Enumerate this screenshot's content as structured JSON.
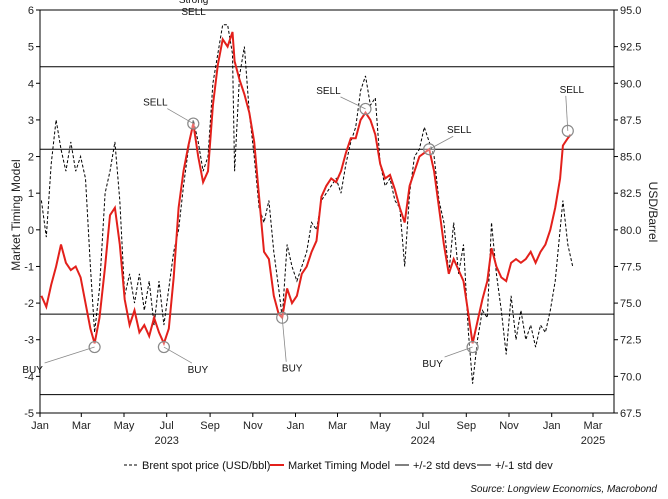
{
  "chart_data": {
    "type": "line",
    "left_axis": {
      "label": "Market Timing Model",
      "range": [
        -5,
        6
      ],
      "ticks": [
        "-5",
        "-4",
        "-3",
        "-2",
        "-1",
        "0",
        "1",
        "2",
        "3",
        "4",
        "5",
        "6"
      ]
    },
    "right_axis": {
      "label": "USD/Barrel",
      "range": [
        67.5,
        95.0
      ],
      "ticks": [
        "67.5",
        "70.0",
        "72.5",
        "75.0",
        "77.5",
        "80.0",
        "82.5",
        "85.0",
        "87.5",
        "90.0",
        "92.5",
        "95.0"
      ]
    },
    "x_axis": {
      "range": [
        "2023-01-01",
        "2025-03-31"
      ],
      "ticks": [
        {
          "label": "Jan",
          "date": "2023-01-01"
        },
        {
          "label": "Mar",
          "date": "2023-03-01"
        },
        {
          "label": "May",
          "date": "2023-05-01"
        },
        {
          "label": "Jul",
          "date": "2023-07-01"
        },
        {
          "label": "Sep",
          "date": "2023-09-01"
        },
        {
          "label": "Nov",
          "date": "2023-11-01"
        },
        {
          "label": "Jan",
          "date": "2024-01-01"
        },
        {
          "label": "Mar",
          "date": "2024-03-01"
        },
        {
          "label": "May",
          "date": "2024-05-01"
        },
        {
          "label": "Jul",
          "date": "2024-07-01"
        },
        {
          "label": "Sep",
          "date": "2024-09-01"
        },
        {
          "label": "Nov",
          "date": "2024-11-01"
        },
        {
          "label": "Jan",
          "date": "2025-01-01"
        },
        {
          "label": "Mar",
          "date": "2025-03-01"
        }
      ],
      "year_labels": [
        {
          "label": "2023",
          "date": "2023-07-01"
        },
        {
          "label": "2024",
          "date": "2024-07-01"
        },
        {
          "label": "2025",
          "date": "2025-03-01"
        }
      ]
    },
    "reference_lines": [
      {
        "series": "+/-2 std devs",
        "y": 4.45
      },
      {
        "series": "+/-2 std devs",
        "y": -4.5
      },
      {
        "series": "+/-1 std dev",
        "y": 2.2
      },
      {
        "series": "+/-1 std dev",
        "y": -2.3
      }
    ],
    "series": [
      {
        "name": "Brent spot price (USD/bbl)",
        "axis": "right",
        "color": "#000000",
        "style": "dashed",
        "points": [
          [
            "2023-01-03",
            82.0
          ],
          [
            "2023-01-10",
            79.5
          ],
          [
            "2023-01-17",
            84.5
          ],
          [
            "2023-01-24",
            87.5
          ],
          [
            "2023-01-31",
            85.5
          ],
          [
            "2023-02-07",
            84.0
          ],
          [
            "2023-02-14",
            86.0
          ],
          [
            "2023-02-21",
            84.0
          ],
          [
            "2023-02-28",
            85.0
          ],
          [
            "2023-03-07",
            83.5
          ],
          [
            "2023-03-14",
            77.5
          ],
          [
            "2023-03-20",
            73.0
          ],
          [
            "2023-03-27",
            76.0
          ],
          [
            "2023-04-04",
            82.5
          ],
          [
            "2023-04-11",
            84.0
          ],
          [
            "2023-04-18",
            86.0
          ],
          [
            "2023-04-25",
            82.0
          ],
          [
            "2023-05-02",
            75.5
          ],
          [
            "2023-05-09",
            77.0
          ],
          [
            "2023-05-16",
            75.0
          ],
          [
            "2023-05-23",
            77.0
          ],
          [
            "2023-05-30",
            74.5
          ],
          [
            "2023-06-06",
            76.5
          ],
          [
            "2023-06-13",
            73.5
          ],
          [
            "2023-06-20",
            76.5
          ],
          [
            "2023-06-27",
            73.5
          ],
          [
            "2023-07-04",
            76.0
          ],
          [
            "2023-07-11",
            78.5
          ],
          [
            "2023-07-18",
            80.0
          ],
          [
            "2023-07-25",
            83.0
          ],
          [
            "2023-08-01",
            85.5
          ],
          [
            "2023-08-08",
            87.5
          ],
          [
            "2023-08-15",
            86.0
          ],
          [
            "2023-08-22",
            84.0
          ],
          [
            "2023-08-29",
            85.0
          ],
          [
            "2023-09-05",
            90.0
          ],
          [
            "2023-09-12",
            92.0
          ],
          [
            "2023-09-19",
            94.0
          ],
          [
            "2023-09-26",
            94.0
          ],
          [
            "2023-10-03",
            92.0
          ],
          [
            "2023-10-06",
            84.0
          ],
          [
            "2023-10-13",
            90.5
          ],
          [
            "2023-10-20",
            92.5
          ],
          [
            "2023-10-27",
            88.0
          ],
          [
            "2023-11-03",
            85.0
          ],
          [
            "2023-11-10",
            81.5
          ],
          [
            "2023-11-17",
            80.5
          ],
          [
            "2023-11-24",
            82.0
          ],
          [
            "2023-12-01",
            78.5
          ],
          [
            "2023-12-08",
            76.0
          ],
          [
            "2023-12-13",
            74.0
          ],
          [
            "2023-12-20",
            79.0
          ],
          [
            "2023-12-27",
            77.5
          ],
          [
            "2024-01-03",
            76.5
          ],
          [
            "2024-01-10",
            77.5
          ],
          [
            "2024-01-17",
            78.5
          ],
          [
            "2024-01-24",
            80.5
          ],
          [
            "2024-01-31",
            80.0
          ],
          [
            "2024-02-07",
            82.0
          ],
          [
            "2024-02-14",
            82.5
          ],
          [
            "2024-02-21",
            83.0
          ],
          [
            "2024-02-28",
            83.5
          ],
          [
            "2024-03-06",
            82.5
          ],
          [
            "2024-03-13",
            84.5
          ],
          [
            "2024-03-20",
            86.0
          ],
          [
            "2024-03-27",
            87.0
          ],
          [
            "2024-04-03",
            89.5
          ],
          [
            "2024-04-10",
            90.5
          ],
          [
            "2024-04-17",
            88.5
          ],
          [
            "2024-04-24",
            89.0
          ],
          [
            "2024-05-01",
            84.5
          ],
          [
            "2024-05-08",
            83.0
          ],
          [
            "2024-05-15",
            83.5
          ],
          [
            "2024-05-22",
            82.0
          ],
          [
            "2024-05-29",
            81.5
          ],
          [
            "2024-06-05",
            77.5
          ],
          [
            "2024-06-12",
            82.5
          ],
          [
            "2024-06-19",
            85.0
          ],
          [
            "2024-06-26",
            85.5
          ],
          [
            "2024-07-03",
            87.0
          ],
          [
            "2024-07-10",
            86.0
          ],
          [
            "2024-07-17",
            85.0
          ],
          [
            "2024-07-24",
            82.0
          ],
          [
            "2024-07-31",
            80.5
          ],
          [
            "2024-08-07",
            77.0
          ],
          [
            "2024-08-14",
            80.5
          ],
          [
            "2024-08-21",
            77.0
          ],
          [
            "2024-08-28",
            79.0
          ],
          [
            "2024-09-04",
            73.0
          ],
          [
            "2024-09-10",
            69.5
          ],
          [
            "2024-09-17",
            72.5
          ],
          [
            "2024-09-24",
            74.5
          ],
          [
            "2024-10-01",
            74.0
          ],
          [
            "2024-10-07",
            80.5
          ],
          [
            "2024-10-14",
            77.0
          ],
          [
            "2024-10-21",
            74.5
          ],
          [
            "2024-10-28",
            71.5
          ],
          [
            "2024-11-04",
            75.5
          ],
          [
            "2024-11-11",
            72.5
          ],
          [
            "2024-11-18",
            74.5
          ],
          [
            "2024-11-25",
            72.5
          ],
          [
            "2024-12-02",
            73.5
          ],
          [
            "2024-12-09",
            72.0
          ],
          [
            "2024-12-16",
            73.5
          ],
          [
            "2024-12-23",
            73.0
          ],
          [
            "2024-12-30",
            74.5
          ],
          [
            "2025-01-06",
            76.5
          ],
          [
            "2025-01-13",
            80.0
          ],
          [
            "2025-01-17",
            82.0
          ],
          [
            "2025-01-24",
            79.0
          ],
          [
            "2025-01-31",
            77.5
          ]
        ]
      },
      {
        "name": "Market Timing Model",
        "axis": "left",
        "color": "#e3201b",
        "style": "solid",
        "points": [
          [
            "2023-01-03",
            -1.8
          ],
          [
            "2023-01-10",
            -2.1
          ],
          [
            "2023-01-17",
            -1.5
          ],
          [
            "2023-01-24",
            -1.0
          ],
          [
            "2023-01-31",
            -0.4
          ],
          [
            "2023-02-07",
            -0.9
          ],
          [
            "2023-02-14",
            -1.1
          ],
          [
            "2023-02-21",
            -1.0
          ],
          [
            "2023-02-28",
            -1.3
          ],
          [
            "2023-03-07",
            -2.0
          ],
          [
            "2023-03-14",
            -2.7
          ],
          [
            "2023-03-20",
            -3.1
          ],
          [
            "2023-03-27",
            -2.4
          ],
          [
            "2023-04-04",
            -1.0
          ],
          [
            "2023-04-11",
            0.4
          ],
          [
            "2023-04-18",
            0.6
          ],
          [
            "2023-04-25",
            -0.4
          ],
          [
            "2023-05-02",
            -1.9
          ],
          [
            "2023-05-09",
            -2.6
          ],
          [
            "2023-05-16",
            -2.2
          ],
          [
            "2023-05-23",
            -2.8
          ],
          [
            "2023-05-30",
            -2.6
          ],
          [
            "2023-06-06",
            -2.9
          ],
          [
            "2023-06-13",
            -2.4
          ],
          [
            "2023-06-20",
            -2.8
          ],
          [
            "2023-06-27",
            -3.1
          ],
          [
            "2023-07-04",
            -2.7
          ],
          [
            "2023-07-11",
            -1.3
          ],
          [
            "2023-07-18",
            0.6
          ],
          [
            "2023-07-25",
            1.6
          ],
          [
            "2023-08-01",
            2.3
          ],
          [
            "2023-08-08",
            2.9
          ],
          [
            "2023-08-15",
            2.0
          ],
          [
            "2023-08-22",
            1.3
          ],
          [
            "2023-08-29",
            1.6
          ],
          [
            "2023-09-05",
            3.4
          ],
          [
            "2023-09-12",
            4.5
          ],
          [
            "2023-09-19",
            5.2
          ],
          [
            "2023-09-26",
            5.0
          ],
          [
            "2023-10-03",
            5.4
          ],
          [
            "2023-10-06",
            4.6
          ],
          [
            "2023-10-13",
            4.1
          ],
          [
            "2023-10-20",
            3.7
          ],
          [
            "2023-10-27",
            3.2
          ],
          [
            "2023-11-03",
            2.4
          ],
          [
            "2023-11-10",
            0.9
          ],
          [
            "2023-11-17",
            -0.6
          ],
          [
            "2023-11-24",
            -0.8
          ],
          [
            "2023-12-01",
            -1.8
          ],
          [
            "2023-12-08",
            -2.3
          ],
          [
            "2023-12-13",
            -2.4
          ],
          [
            "2023-12-20",
            -1.6
          ],
          [
            "2023-12-27",
            -2.0
          ],
          [
            "2024-01-03",
            -1.8
          ],
          [
            "2024-01-10",
            -1.2
          ],
          [
            "2024-01-17",
            -1.0
          ],
          [
            "2024-01-24",
            -0.6
          ],
          [
            "2024-01-31",
            -0.3
          ],
          [
            "2024-02-07",
            0.9
          ],
          [
            "2024-02-14",
            1.2
          ],
          [
            "2024-02-21",
            1.4
          ],
          [
            "2024-02-28",
            1.3
          ],
          [
            "2024-03-06",
            1.6
          ],
          [
            "2024-03-13",
            2.1
          ],
          [
            "2024-03-20",
            2.5
          ],
          [
            "2024-03-27",
            2.5
          ],
          [
            "2024-04-03",
            3.0
          ],
          [
            "2024-04-10",
            3.2
          ],
          [
            "2024-04-17",
            3.0
          ],
          [
            "2024-04-24",
            2.6
          ],
          [
            "2024-05-01",
            1.8
          ],
          [
            "2024-05-08",
            1.4
          ],
          [
            "2024-05-15",
            1.5
          ],
          [
            "2024-05-22",
            1.1
          ],
          [
            "2024-05-29",
            0.6
          ],
          [
            "2024-06-05",
            0.2
          ],
          [
            "2024-06-12",
            1.2
          ],
          [
            "2024-06-19",
            1.6
          ],
          [
            "2024-06-26",
            2.0
          ],
          [
            "2024-07-03",
            2.1
          ],
          [
            "2024-07-10",
            2.2
          ],
          [
            "2024-07-17",
            1.6
          ],
          [
            "2024-07-24",
            0.6
          ],
          [
            "2024-07-31",
            -0.4
          ],
          [
            "2024-08-07",
            -1.2
          ],
          [
            "2024-08-14",
            -0.8
          ],
          [
            "2024-08-21",
            -1.1
          ],
          [
            "2024-08-28",
            -1.4
          ],
          [
            "2024-09-04",
            -2.3
          ],
          [
            "2024-09-10",
            -3.1
          ],
          [
            "2024-09-17",
            -2.5
          ],
          [
            "2024-09-24",
            -1.9
          ],
          [
            "2024-10-01",
            -1.4
          ],
          [
            "2024-10-07",
            -0.5
          ],
          [
            "2024-10-14",
            -1.0
          ],
          [
            "2024-10-21",
            -1.3
          ],
          [
            "2024-10-28",
            -1.4
          ],
          [
            "2024-11-04",
            -0.9
          ],
          [
            "2024-11-11",
            -0.8
          ],
          [
            "2024-11-18",
            -0.9
          ],
          [
            "2024-11-25",
            -0.8
          ],
          [
            "2024-12-02",
            -0.6
          ],
          [
            "2024-12-09",
            -0.9
          ],
          [
            "2024-12-16",
            -0.6
          ],
          [
            "2024-12-23",
            -0.4
          ],
          [
            "2024-12-30",
            0.0
          ],
          [
            "2025-01-06",
            0.6
          ],
          [
            "2025-01-13",
            1.4
          ],
          [
            "2025-01-17",
            2.3
          ],
          [
            "2025-01-24",
            2.5
          ],
          [
            "2025-01-28",
            2.6
          ]
        ]
      }
    ],
    "annotations": [
      {
        "text": "Strong\nSELL",
        "date": "2023-09-26",
        "y": 5.1
      },
      {
        "text": "SELL",
        "date": "2023-08-08",
        "y": 2.9
      },
      {
        "text": "SELL",
        "date": "2024-04-10",
        "y": 3.3
      },
      {
        "text": "SELL",
        "date": "2024-07-10",
        "y": 2.2
      },
      {
        "text": "SELL",
        "date": "2025-01-24",
        "y": 2.7
      },
      {
        "text": "BUY",
        "date": "2023-03-20",
        "y": -3.2
      },
      {
        "text": "BUY",
        "date": "2023-06-27",
        "y": -3.2
      },
      {
        "text": "BUY",
        "date": "2023-12-13",
        "y": -2.4
      },
      {
        "text": "BUY",
        "date": "2024-09-10",
        "y": -3.2
      }
    ],
    "legend": {
      "placement": "bottom",
      "entries": [
        {
          "label": "Brent spot price (USD/bbl)",
          "style": "dashed",
          "color": "#000000"
        },
        {
          "label": "Market Timing Model",
          "style": "solid",
          "color": "#e3201b"
        },
        {
          "label": "+/-2 std devs",
          "style": "solid",
          "color": "#000000"
        },
        {
          "label": "+/-1 std dev",
          "style": "solid",
          "color": "#000000"
        }
      ]
    },
    "grid": false
  },
  "source": "Source: Longview Economics, Macrobond"
}
